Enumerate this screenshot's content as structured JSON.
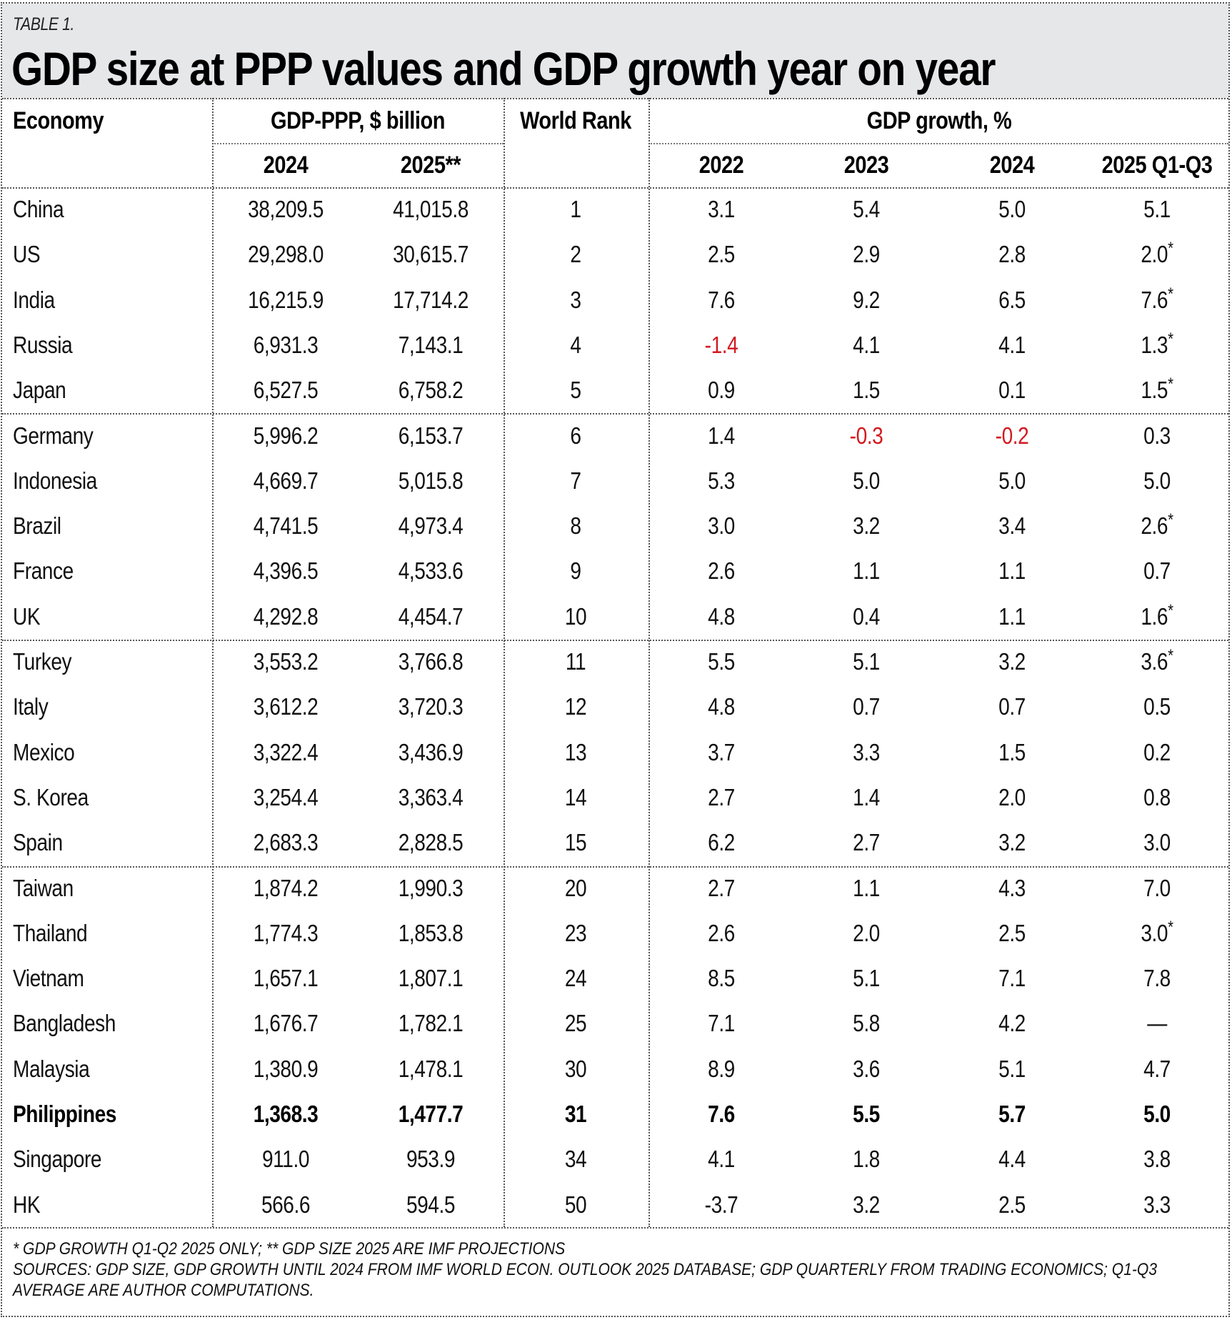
{
  "header": {
    "label": "TABLE 1.",
    "title": "GDP size at PPP values and GDP growth year on year"
  },
  "columns": {
    "economy": "Economy",
    "gdp_ppp_group": "GDP-PPP, $ billion",
    "gdp_2024": "2024",
    "gdp_2025": "2025**",
    "world_rank": "World Rank",
    "growth_group": "GDP growth, %",
    "g2022": "2022",
    "g2023": "2023",
    "g2024": "2024",
    "g2025": "2025 Q1-Q3"
  },
  "colors": {
    "negative": "#d3191f",
    "title_band": "#e6e7e9"
  },
  "rows": [
    {
      "economy": "China",
      "gdp_2024": "38,209.5",
      "gdp_2025": "41,015.8",
      "rank": "1",
      "g2022": "3.1",
      "g2023": "5.4",
      "g2024": "5.0",
      "g2025": "5.1"
    },
    {
      "economy": "US",
      "gdp_2024": "29,298.0",
      "gdp_2025": "30,615.7",
      "rank": "2",
      "g2022": "2.5",
      "g2023": "2.9",
      "g2024": "2.8",
      "g2025": "2.0*"
    },
    {
      "economy": "India",
      "gdp_2024": "16,215.9",
      "gdp_2025": "17,714.2",
      "rank": "3",
      "g2022": "7.6",
      "g2023": "9.2",
      "g2024": "6.5",
      "g2025": "7.6*"
    },
    {
      "economy": "Russia",
      "gdp_2024": "6,931.3",
      "gdp_2025": "7,143.1",
      "rank": "4",
      "g2022": "-1.4",
      "g2023": "4.1",
      "g2024": "4.1",
      "g2025": "1.3*",
      "negative": [
        "g2022"
      ]
    },
    {
      "economy": "Japan",
      "gdp_2024": "6,527.5",
      "gdp_2025": "6,758.2",
      "rank": "5",
      "g2022": "0.9",
      "g2023": "1.5",
      "g2024": "0.1",
      "g2025": "1.5*"
    },
    {
      "economy": "Germany",
      "gdp_2024": "5,996.2",
      "gdp_2025": "6,153.7",
      "rank": "6",
      "g2022": "1.4",
      "g2023": "-0.3",
      "g2024": "-0.2",
      "g2025": "0.3",
      "negative": [
        "g2023",
        "g2024"
      ]
    },
    {
      "economy": "Indonesia",
      "gdp_2024": "4,669.7",
      "gdp_2025": "5,015.8",
      "rank": "7",
      "g2022": "5.3",
      "g2023": "5.0",
      "g2024": "5.0",
      "g2025": "5.0"
    },
    {
      "economy": "Brazil",
      "gdp_2024": "4,741.5",
      "gdp_2025": "4,973.4",
      "rank": "8",
      "g2022": "3.0",
      "g2023": "3.2",
      "g2024": "3.4",
      "g2025": "2.6*"
    },
    {
      "economy": "France",
      "gdp_2024": "4,396.5",
      "gdp_2025": "4,533.6",
      "rank": "9",
      "g2022": "2.6",
      "g2023": "1.1",
      "g2024": "1.1",
      "g2025": "0.7"
    },
    {
      "economy": "UK",
      "gdp_2024": "4,292.8",
      "gdp_2025": "4,454.7",
      "rank": "10",
      "g2022": "4.8",
      "g2023": "0.4",
      "g2024": "1.1",
      "g2025": "1.6*"
    },
    {
      "economy": "Turkey",
      "gdp_2024": "3,553.2",
      "gdp_2025": "3,766.8",
      "rank": "11",
      "g2022": "5.5",
      "g2023": "5.1",
      "g2024": "3.2",
      "g2025": "3.6*"
    },
    {
      "economy": "Italy",
      "gdp_2024": "3,612.2",
      "gdp_2025": "3,720.3",
      "rank": "12",
      "g2022": "4.8",
      "g2023": "0.7",
      "g2024": "0.7",
      "g2025": "0.5"
    },
    {
      "economy": "Mexico",
      "gdp_2024": "3,322.4",
      "gdp_2025": "3,436.9",
      "rank": "13",
      "g2022": "3.7",
      "g2023": "3.3",
      "g2024": "1.5",
      "g2025": "0.2"
    },
    {
      "economy": "S. Korea",
      "gdp_2024": "3,254.4",
      "gdp_2025": "3,363.4",
      "rank": "14",
      "g2022": "2.7",
      "g2023": "1.4",
      "g2024": "2.0",
      "g2025": "0.8"
    },
    {
      "economy": "Spain",
      "gdp_2024": "2,683.3",
      "gdp_2025": "2,828.5",
      "rank": "15",
      "g2022": "6.2",
      "g2023": "2.7",
      "g2024": "3.2",
      "g2025": "3.0"
    },
    {
      "economy": "Taiwan",
      "gdp_2024": "1,874.2",
      "gdp_2025": "1,990.3",
      "rank": "20",
      "g2022": "2.7",
      "g2023": "1.1",
      "g2024": "4.3",
      "g2025": "7.0"
    },
    {
      "economy": "Thailand",
      "gdp_2024": "1,774.3",
      "gdp_2025": "1,853.8",
      "rank": "23",
      "g2022": "2.6",
      "g2023": "2.0",
      "g2024": "2.5",
      "g2025": "3.0*"
    },
    {
      "economy": "Vietnam",
      "gdp_2024": "1,657.1",
      "gdp_2025": "1,807.1",
      "rank": "24",
      "g2022": "8.5",
      "g2023": "5.1",
      "g2024": "7.1",
      "g2025": "7.8"
    },
    {
      "economy": "Bangladesh",
      "gdp_2024": "1,676.7",
      "gdp_2025": "1,782.1",
      "rank": "25",
      "g2022": "7.1",
      "g2023": "5.8",
      "g2024": "4.2",
      "g2025": "—"
    },
    {
      "economy": "Malaysia",
      "gdp_2024": "1,380.9",
      "gdp_2025": "1,478.1",
      "rank": "30",
      "g2022": "8.9",
      "g2023": "3.6",
      "g2024": "5.1",
      "g2025": "4.7"
    },
    {
      "economy": "Philippines",
      "gdp_2024": "1,368.3",
      "gdp_2025": "1,477.7",
      "rank": "31",
      "g2022": "7.6",
      "g2023": "5.5",
      "g2024": "5.7",
      "g2025": "5.0",
      "highlight": true
    },
    {
      "economy": "Singapore",
      "gdp_2024": "911.0",
      "gdp_2025": "953.9",
      "rank": "34",
      "g2022": "4.1",
      "g2023": "1.8",
      "g2024": "4.4",
      "g2025": "3.8"
    },
    {
      "economy": "HK",
      "gdp_2024": "566.6",
      "gdp_2025": "594.5",
      "rank": "50",
      "g2022": "-3.7",
      "g2023": "3.2",
      "g2024": "2.5",
      "g2025": "3.3"
    }
  ],
  "footer": {
    "line1": "* GDP GROWTH Q1-Q2 2025 ONLY;  ** GDP SIZE 2025 ARE IMF PROJECTIONS",
    "line2": "SOURCES: GDP SIZE, GDP GROWTH UNTIL 2024 FROM IMF WORLD ECON. OUTLOOK 2025 DATABASE; GDP QUARTERLY FROM TRADING ECONOMICS; Q1-Q3",
    "line3": "AVERAGE ARE AUTHOR COMPUTATIONS."
  }
}
